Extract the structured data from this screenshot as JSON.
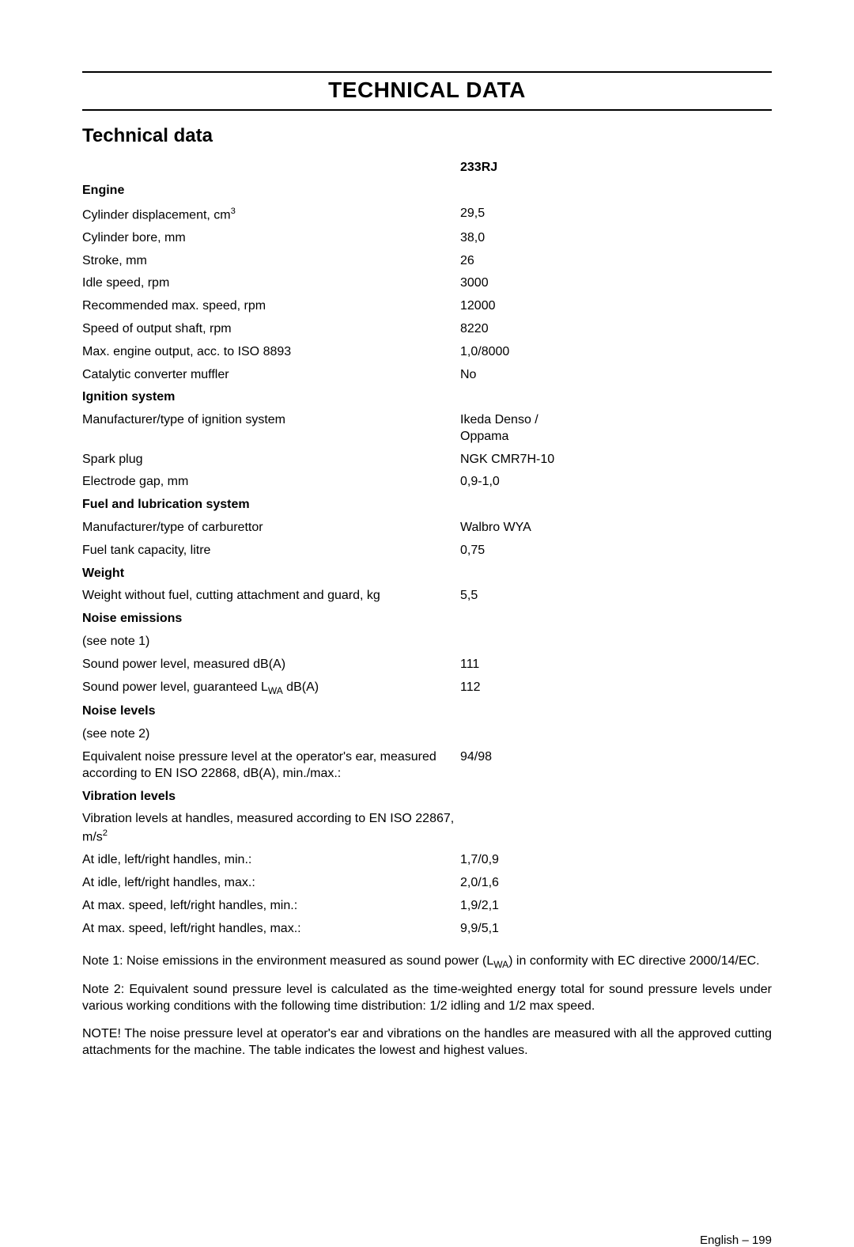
{
  "page": {
    "title": "TECHNICAL DATA",
    "subtitle": "Technical data",
    "column_header": "233RJ",
    "footer_text": "English",
    "footer_page": "199"
  },
  "rows": [
    {
      "type": "section",
      "label": "Engine"
    },
    {
      "type": "row",
      "label_html": "Cylinder displacement, cm<sup>3</sup>",
      "value": "29,5"
    },
    {
      "type": "row",
      "label": "Cylinder bore, mm",
      "value": "38,0"
    },
    {
      "type": "row",
      "label": "Stroke, mm",
      "value": "26"
    },
    {
      "type": "row",
      "label": "Idle speed, rpm",
      "value": "3000"
    },
    {
      "type": "row",
      "label": "Recommended max. speed, rpm",
      "value": "12000"
    },
    {
      "type": "row",
      "label": "Speed of output shaft, rpm",
      "value": "8220"
    },
    {
      "type": "row",
      "label": "Max. engine output, acc. to ISO 8893",
      "value": "1,0/8000"
    },
    {
      "type": "row",
      "label": "Catalytic converter muffler",
      "value": "No"
    },
    {
      "type": "section",
      "label": "Ignition system"
    },
    {
      "type": "row",
      "label": "Manufacturer/type of ignition system",
      "value_html": "Ikeda Denso /<br>Oppama"
    },
    {
      "type": "row",
      "label": "Spark plug",
      "value": "NGK CMR7H-10"
    },
    {
      "type": "row",
      "label": "Electrode gap, mm",
      "value": "0,9-1,0"
    },
    {
      "type": "section",
      "label": "Fuel and lubrication system"
    },
    {
      "type": "row",
      "label": "Manufacturer/type of carburettor",
      "value": "Walbro WYA"
    },
    {
      "type": "row",
      "label": "Fuel tank capacity, litre",
      "value": "0,75"
    },
    {
      "type": "section",
      "label": "Weight"
    },
    {
      "type": "row",
      "label": "Weight without fuel, cutting attachment and guard, kg",
      "value": "5,5"
    },
    {
      "type": "section",
      "label": "Noise emissions"
    },
    {
      "type": "row",
      "label": "(see note 1)",
      "value": ""
    },
    {
      "type": "row",
      "label": "Sound power level, measured dB(A)",
      "value": "111"
    },
    {
      "type": "row",
      "label_html": "Sound power level, guaranteed L<sub>WA</sub> dB(A)",
      "value": "112"
    },
    {
      "type": "section",
      "label": "Noise levels"
    },
    {
      "type": "row",
      "label": "(see note 2)",
      "value": ""
    },
    {
      "type": "row",
      "label": "Equivalent noise pressure level at the operator's ear, measured according to EN ISO 22868, dB(A), min./max.:",
      "value": "94/98"
    },
    {
      "type": "section",
      "label": "Vibration levels"
    },
    {
      "type": "row",
      "label_html": "Vibration levels at handles, measured according to EN&nbsp;ISO&nbsp;22867, m/s<sup>2</sup>",
      "value": ""
    },
    {
      "type": "row",
      "label": "At idle, left/right handles, min.:",
      "value": "1,7/0,9"
    },
    {
      "type": "row",
      "label": "At idle, left/right handles, max.:",
      "value": "2,0/1,6"
    },
    {
      "type": "row",
      "label": "At max. speed, left/right handles, min.:",
      "value": "1,9/2,1"
    },
    {
      "type": "row",
      "label": "At max. speed, left/right handles, max.:",
      "value": "9,9/5,1"
    }
  ],
  "notes": [
    "Note 1: Noise emissions in the environment measured as sound power (L<sub>WA</sub>) in conformity with EC directive 2000/14/EC.",
    "Note 2: Equivalent sound pressure level is calculated as the time-weighted energy total for sound pressure levels under various working conditions with the following time distribution: 1/2 idling and 1/2 max speed.",
    "NOTE!  The noise pressure level at operator's ear and vibrations on the handles are measured with all the approved cutting attachments for the machine. The table indicates the lowest  and highest values."
  ]
}
